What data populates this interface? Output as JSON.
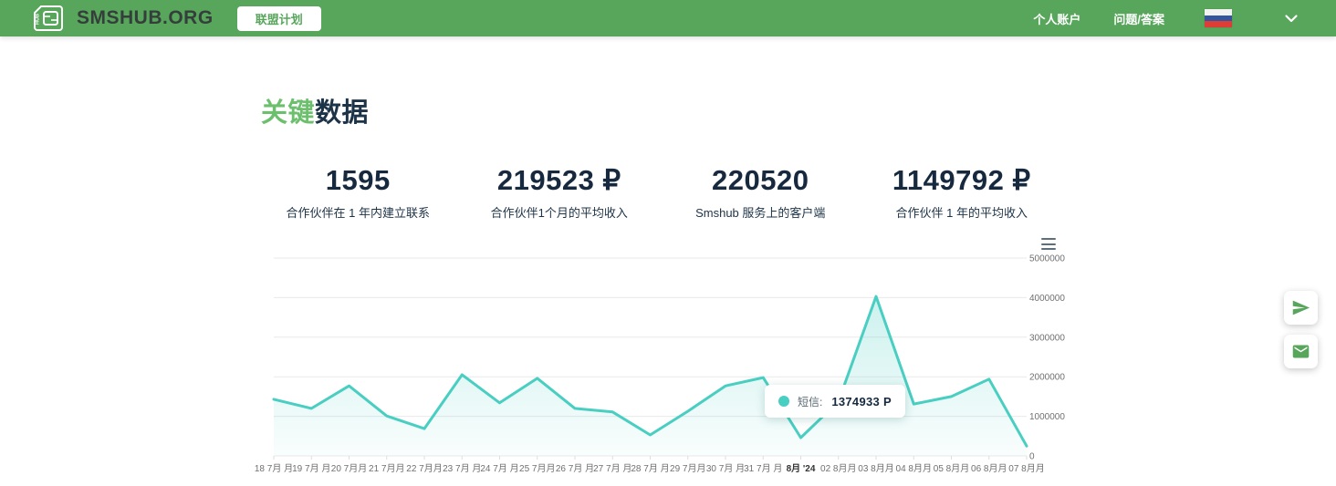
{
  "header": {
    "logo_text": "SMSHUB.ORG",
    "affiliate_button_label": "联盟计划",
    "nav": [
      {
        "label": "个人账户"
      },
      {
        "label": "问题/答案"
      }
    ],
    "language_flag": "russia-flag"
  },
  "page": {
    "title_highlight": "关键",
    "title_rest": "数据"
  },
  "stats": [
    {
      "value": "1595",
      "label": "合作伙伴在 1 年内建立联系"
    },
    {
      "value": "219523 ₽",
      "label": "合作伙伴1个月的平均收入"
    },
    {
      "value": "220520",
      "label": "Smshub 服务上的客户端"
    },
    {
      "value": "1149792 ₽",
      "label": "合作伙伴 1 年的平均收入"
    }
  ],
  "chart_data": {
    "type": "area",
    "title": "",
    "xlabel": "",
    "ylabel": "",
    "ylim": [
      0,
      5000000
    ],
    "yticks": [
      0,
      1000000,
      2000000,
      3000000,
      4000000,
      5000000
    ],
    "grid": true,
    "legend_position": "none",
    "categories": [
      "18 7月 月",
      "19 7月 月",
      "20 7月月",
      "21 7月月",
      "22 7月月",
      "23 7月 月",
      "24 7月 月",
      "25 7月月",
      "26 7月 月",
      "27 7月 月",
      "28 7月 月",
      "29 7月月",
      "30 7月 月",
      "31 7月 月",
      "8月 '24",
      "02 8月月",
      "03 8月月",
      "04 8月月",
      "05 8月月",
      "06 8月月",
      "07 8月月"
    ],
    "bold_category_index": 14,
    "series": [
      {
        "name": "短信",
        "values": [
          1430000,
          1200000,
          1770000,
          1010000,
          690000,
          2050000,
          1340000,
          1960000,
          1200000,
          1110000,
          530000,
          1130000,
          1770000,
          1980000,
          460000,
          1374933,
          4030000,
          1310000,
          1500000,
          1940000,
          250000
        ]
      }
    ],
    "tooltip": {
      "series_label": "短信:",
      "value_text": "1374933 P",
      "point_index": 15
    },
    "colors": {
      "line": "#49CEC2",
      "fill_top": "rgba(73,206,194,0.28)",
      "fill_bottom": "rgba(73,206,194,0.03)",
      "grid": "#e9e9e9",
      "axis_label": "#707070",
      "bold_label": "#333333"
    }
  },
  "theme": {
    "header_green": "#58A65B",
    "accent_green": "#6CBF6C",
    "navy": "#17293E",
    "teal": "#49CEC2"
  },
  "floating_buttons": [
    {
      "name": "telegram"
    },
    {
      "name": "email"
    }
  ]
}
